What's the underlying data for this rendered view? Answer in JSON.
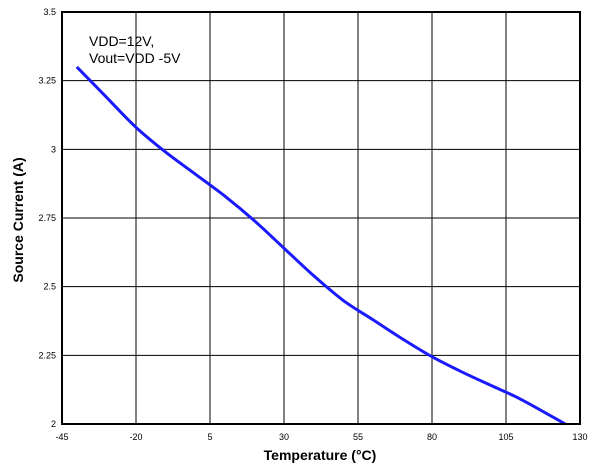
{
  "chart_data": {
    "type": "line",
    "title": "",
    "xlabel": "Temperature (°C)",
    "ylabel": "Source Current (A)",
    "xlim": [
      -45,
      130
    ],
    "ylim": [
      2,
      3.5
    ],
    "xticks": [
      -45,
      -20,
      5,
      30,
      55,
      80,
      105,
      130
    ],
    "yticks": [
      2,
      2.25,
      2.5,
      2.75,
      3,
      3.25,
      3.5
    ],
    "xtick_labels": [
      "-45",
      "-20",
      "5",
      "30",
      "55",
      "80",
      "105",
      "130"
    ],
    "ytick_labels": [
      "2",
      "2.25",
      "2.5",
      "2.75",
      "3",
      "3.25",
      "3.5"
    ],
    "grid": true,
    "annotations": [
      "VDD=12V,",
      "Vout=VDD -5V"
    ],
    "series": [
      {
        "color": "#1a1aff",
        "x": [
          -40,
          -30,
          -20,
          -10,
          0,
          10,
          20,
          30,
          40,
          50,
          60,
          70,
          80,
          90,
          100,
          110,
          125
        ],
        "y": [
          3.3,
          3.19,
          3.08,
          2.99,
          2.91,
          2.83,
          2.74,
          2.64,
          2.54,
          2.45,
          2.38,
          2.31,
          2.245,
          2.19,
          2.14,
          2.09,
          2.0
        ]
      }
    ]
  }
}
